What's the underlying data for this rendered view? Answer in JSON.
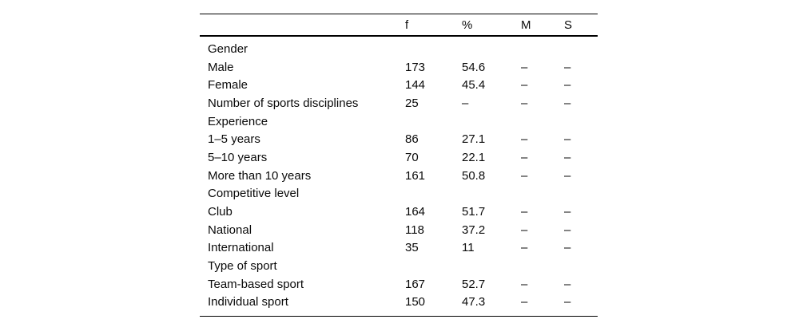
{
  "table": {
    "columns": [
      "",
      "f",
      "%",
      "M",
      "S"
    ],
    "rows": [
      [
        "Gender",
        "",
        "",
        "",
        ""
      ],
      [
        "Male",
        "173",
        "54.6",
        "–",
        "–"
      ],
      [
        "Female",
        "144",
        "45.4",
        "–",
        "–"
      ],
      [
        "Number of sports disciplines",
        "25",
        "–",
        "–",
        "–"
      ],
      [
        "Experience",
        "",
        "",
        "",
        ""
      ],
      [
        "1–5 years",
        "86",
        "27.1",
        "–",
        "–"
      ],
      [
        "5–10 years",
        "70",
        "22.1",
        "–",
        "–"
      ],
      [
        "More than 10 years",
        "161",
        "50.8",
        "–",
        "–"
      ],
      [
        "Competitive level",
        "",
        "",
        "",
        ""
      ],
      [
        "Club",
        "164",
        "51.7",
        "–",
        "–"
      ],
      [
        "National",
        "118",
        "37.2",
        "–",
        "–"
      ],
      [
        "International",
        "35",
        "11",
        "–",
        "–"
      ],
      [
        "Type of sport",
        "",
        "",
        "",
        ""
      ],
      [
        "Team-based sport",
        "167",
        "52.7",
        "–",
        "–"
      ],
      [
        "Individual sport",
        "150",
        "47.3",
        "–",
        "–"
      ]
    ]
  }
}
